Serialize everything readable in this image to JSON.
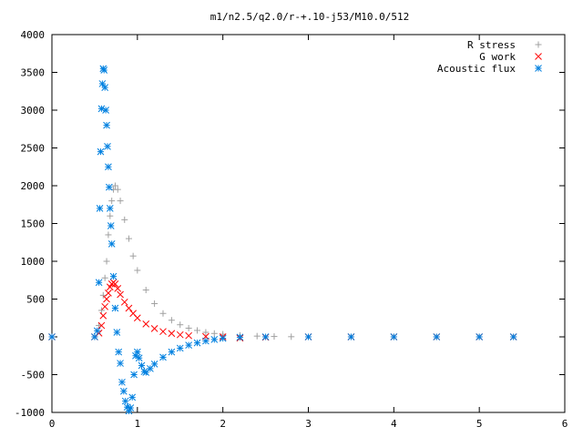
{
  "chart_data": {
    "type": "scatter",
    "title": "m1/n2.5/q2.0/r-+.10-j53/M10.0/512",
    "xlabel": "",
    "ylabel": "",
    "xlim": [
      0,
      6
    ],
    "ylim": [
      -1000,
      4000
    ],
    "xticks": [
      "0",
      "1",
      "2",
      "3",
      "4",
      "5",
      "6"
    ],
    "yticks": [
      "-1000",
      "-500",
      "0",
      "500",
      "1000",
      "1500",
      "2000",
      "2500",
      "3000",
      "3500",
      "4000"
    ],
    "legend_position": "top-right",
    "grid": false,
    "series": [
      {
        "name": "R stress",
        "marker": "plus",
        "color": "#a0a0a0",
        "x": [
          0.0,
          0.5,
          0.55,
          0.58,
          0.6,
          0.62,
          0.64,
          0.66,
          0.68,
          0.7,
          0.72,
          0.74,
          0.77,
          0.8,
          0.85,
          0.9,
          0.95,
          1.0,
          1.1,
          1.2,
          1.3,
          1.4,
          1.5,
          1.6,
          1.7,
          1.8,
          1.9,
          2.0,
          2.2,
          2.4,
          2.6,
          2.8,
          3.0,
          3.5,
          4.0,
          4.5,
          5.0,
          5.4
        ],
        "y": [
          0,
          0,
          150,
          350,
          550,
          780,
          1000,
          1350,
          1600,
          1800,
          1950,
          2000,
          1950,
          1800,
          1550,
          1300,
          1070,
          880,
          620,
          440,
          310,
          220,
          160,
          115,
          85,
          60,
          45,
          35,
          20,
          10,
          5,
          2,
          0,
          0,
          0,
          0,
          0,
          0
        ]
      },
      {
        "name": "G work",
        "marker": "cross",
        "color": "#ff0000",
        "x": [
          0.0,
          0.5,
          0.55,
          0.58,
          0.6,
          0.62,
          0.64,
          0.66,
          0.68,
          0.7,
          0.72,
          0.74,
          0.77,
          0.8,
          0.85,
          0.9,
          0.95,
          1.0,
          1.1,
          1.2,
          1.3,
          1.4,
          1.5,
          1.6,
          1.8,
          2.0,
          2.2,
          2.5,
          3.0,
          3.5,
          4.0,
          4.5,
          5.0,
          5.4
        ],
        "y": [
          0,
          0,
          50,
          150,
          280,
          400,
          500,
          580,
          660,
          700,
          720,
          700,
          640,
          560,
          460,
          380,
          310,
          250,
          170,
          110,
          70,
          45,
          28,
          16,
          5,
          0,
          -15,
          -5,
          0,
          0,
          0,
          0,
          0,
          0
        ]
      },
      {
        "name": "Acoustic flux",
        "marker": "star",
        "color": "#0080e0",
        "x": [
          0.0,
          0.5,
          0.53,
          0.55,
          0.56,
          0.57,
          0.58,
          0.59,
          0.6,
          0.61,
          0.62,
          0.63,
          0.64,
          0.65,
          0.66,
          0.67,
          0.68,
          0.69,
          0.7,
          0.72,
          0.74,
          0.76,
          0.78,
          0.8,
          0.82,
          0.84,
          0.86,
          0.88,
          0.9,
          0.92,
          0.94,
          0.96,
          0.98,
          1.0,
          1.02,
          1.05,
          1.08,
          1.1,
          1.15,
          1.2,
          1.3,
          1.4,
          1.5,
          1.6,
          1.7,
          1.8,
          1.9,
          2.0,
          2.2,
          2.5,
          3.0,
          3.5,
          4.0,
          4.5,
          5.0,
          5.4
        ],
        "y": [
          0,
          0,
          80,
          720,
          1700,
          2450,
          3020,
          3350,
          3550,
          3530,
          3300,
          3000,
          2800,
          2520,
          2250,
          1980,
          1700,
          1470,
          1230,
          800,
          380,
          60,
          -200,
          -350,
          -600,
          -720,
          -850,
          -930,
          -980,
          -940,
          -800,
          -500,
          -250,
          -200,
          -280,
          -380,
          -460,
          -470,
          -420,
          -360,
          -270,
          -200,
          -150,
          -110,
          -80,
          -55,
          -35,
          -20,
          -5,
          0,
          0,
          0,
          0,
          0,
          0,
          0
        ]
      }
    ]
  }
}
